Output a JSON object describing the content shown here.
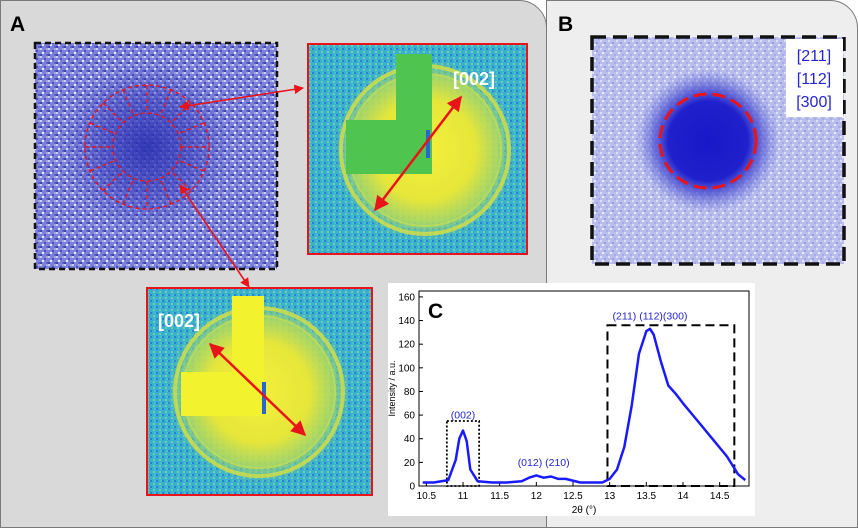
{
  "figure": {
    "panel_a_label": "A",
    "panel_b_label": "B",
    "panel_c_label": "C",
    "pattern_top_label": "[002]",
    "pattern_bottom_label": "[002]",
    "panel_b_legend": [
      "[211]",
      "[112]",
      "[300]"
    ]
  },
  "colors": {
    "marker_red": "#e8141a",
    "curve_blue": "#1a1aff",
    "label_blue": "#2424d0"
  },
  "chart_data": {
    "type": "line",
    "title": "",
    "xlabel": "2θ (°)",
    "ylabel": "Intensity / a.u.",
    "xlim": [
      10.4,
      14.9
    ],
    "ylim": [
      0,
      165
    ],
    "xticks": [
      10.5,
      11,
      11.5,
      12,
      12.5,
      13,
      13.5,
      14,
      14.5
    ],
    "xtick_labels": [
      "10.5",
      "11",
      "11.5",
      "12",
      "12.5",
      "13",
      "13.5",
      "14",
      "14.5"
    ],
    "yticks": [
      0,
      20,
      40,
      60,
      80,
      100,
      120,
      140,
      160
    ],
    "ytick_labels": [
      "0",
      "20",
      "40",
      "60",
      "80",
      "100",
      "120",
      "140",
      "160"
    ],
    "series": [
      {
        "name": "Intensity",
        "x": [
          10.45,
          10.6,
          10.8,
          10.9,
          10.95,
          11.0,
          11.05,
          11.1,
          11.2,
          11.4,
          11.6,
          11.8,
          11.9,
          12.0,
          12.1,
          12.2,
          12.3,
          12.4,
          12.6,
          12.9,
          13.0,
          13.1,
          13.2,
          13.3,
          13.4,
          13.5,
          13.55,
          13.6,
          13.7,
          13.8,
          13.9,
          14.0,
          14.2,
          14.4,
          14.6,
          14.75,
          14.85
        ],
        "y": [
          3,
          3,
          5,
          22,
          40,
          47,
          38,
          14,
          4,
          3,
          3,
          4,
          7,
          9,
          7,
          8,
          6,
          6,
          3,
          3,
          6,
          14,
          33,
          68,
          112,
          131,
          133,
          128,
          105,
          85,
          78,
          70,
          55,
          40,
          25,
          10,
          5
        ]
      }
    ],
    "annotations": [
      {
        "text": "(002)",
        "x": 11.0,
        "y": 57
      },
      {
        "text": "(012) (210)",
        "x": 12.1,
        "y": 17
      },
      {
        "text": "(211) (112)(300)",
        "x": 13.55,
        "y": 141
      }
    ],
    "boxes": [
      {
        "style": "dotted",
        "x0": 10.78,
        "x1": 11.22,
        "y0": 0,
        "y1": 55
      },
      {
        "style": "dashed",
        "x0": 12.97,
        "x1": 14.7,
        "y0": 0,
        "y1": 136
      }
    ]
  }
}
